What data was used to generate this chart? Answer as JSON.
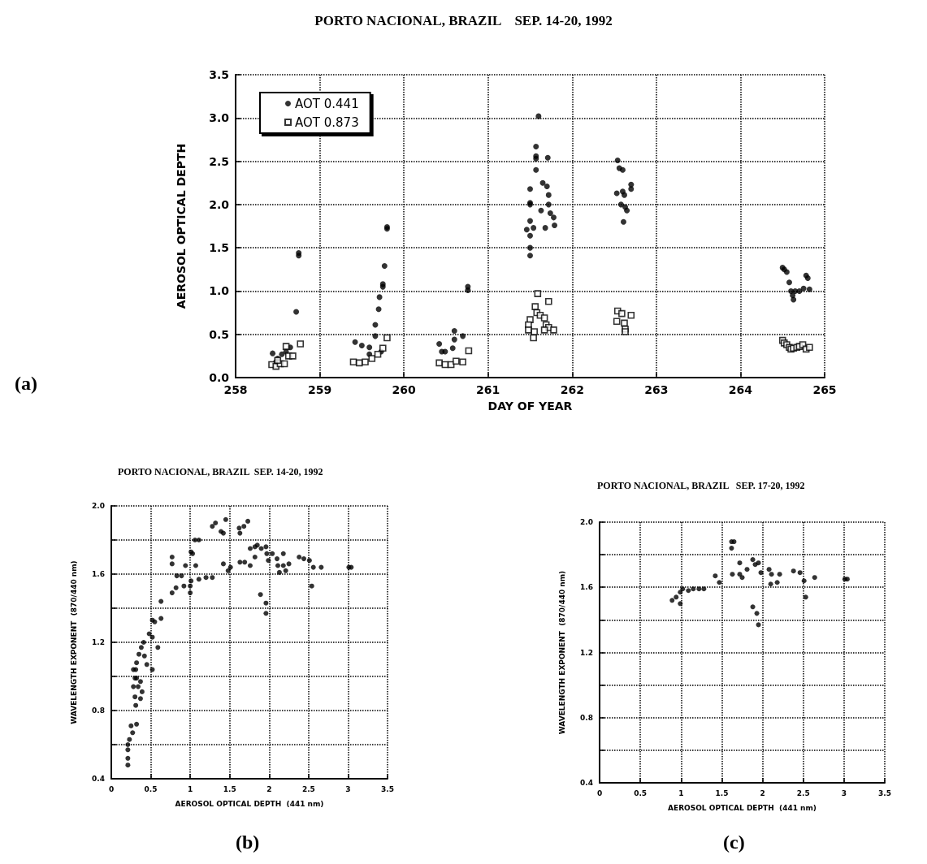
{
  "chart_data": [
    {
      "type": "scatter",
      "title": "PORTO NACIONAL, BRAZIL    SEP. 14-20, 1992",
      "xlabel": "DAY OF YEAR",
      "ylabel": "AEROSOL OPTICAL DEPTH",
      "annotations": [
        "(a)"
      ],
      "xlim": [
        258,
        265
      ],
      "xticks": [
        258,
        259,
        260,
        261,
        262,
        263,
        264,
        265
      ],
      "ylim": [
        0,
        3.5
      ],
      "yticks": [
        {
          "value": 0,
          "label": "0.0"
        },
        0.5,
        {
          "value": 1,
          "label": "1.0"
        },
        1.5,
        {
          "value": 2,
          "label": "2.0"
        },
        2.5,
        {
          "value": 3,
          "label": "3.0"
        },
        3.5
      ],
      "grid": true,
      "legend": "top left",
      "series": [
        {
          "name": "AOT 0.441",
          "color": "#000000",
          "marker": "circle",
          "x": [
            258.44,
            258.5,
            258.55,
            258.6,
            258.65,
            258.48,
            258.72,
            258.75,
            258.75,
            259.42,
            259.5,
            259.59,
            259.66,
            259.66,
            259.7,
            259.71,
            259.75,
            259.75,
            259.77,
            259.8,
            259.8,
            259.59,
            259.73,
            260.42,
            260.49,
            260.58,
            260.6,
            260.6,
            260.7,
            260.76,
            260.76,
            260.45,
            261.6,
            261.57,
            261.57,
            261.57,
            261.71,
            261.57,
            261.5,
            261.5,
            261.5,
            261.5,
            261.46,
            261.5,
            261.54,
            261.5,
            261.5,
            261.65,
            261.7,
            261.72,
            261.63,
            261.72,
            261.74,
            261.68,
            261.78,
            261.79,
            262.54,
            262.56,
            262.6,
            262.53,
            262.6,
            262.62,
            262.7,
            262.7,
            262.63,
            262.65,
            262.61,
            262.58,
            264.5,
            264.52,
            264.55,
            264.58,
            264.6,
            264.62,
            264.63,
            264.65,
            264.7,
            264.75,
            264.78,
            264.8,
            264.82
          ],
          "values": [
            0.28,
            0.22,
            0.27,
            0.3,
            0.35,
            0.18,
            0.76,
            1.41,
            1.44,
            0.41,
            0.37,
            0.35,
            0.61,
            0.48,
            0.79,
            0.93,
            1.05,
            1.08,
            1.29,
            1.72,
            1.74,
            0.27,
            0.3,
            0.39,
            0.3,
            0.34,
            0.44,
            0.54,
            0.48,
            1.01,
            1.05,
            0.3,
            3.02,
            2.67,
            2.56,
            2.53,
            2.54,
            2.4,
            2.18,
            2.02,
            2.0,
            1.81,
            1.71,
            1.64,
            1.73,
            1.5,
            1.41,
            2.25,
            2.21,
            2.11,
            1.93,
            2.0,
            1.9,
            1.73,
            1.85,
            1.76,
            2.51,
            2.42,
            2.4,
            2.13,
            2.15,
            2.11,
            2.23,
            2.18,
            1.97,
            1.93,
            1.8,
            2.0,
            1.27,
            1.25,
            1.22,
            1.1,
            1.0,
            0.95,
            0.9,
            1.0,
            1.0,
            1.03,
            1.18,
            1.15,
            1.02
          ]
        },
        {
          "name": "AOT 0.873",
          "color": "#000000",
          "marker": "square",
          "x": [
            258.43,
            258.48,
            258.53,
            258.63,
            258.58,
            258.68,
            258.77,
            258.6,
            258.5,
            259.4,
            259.47,
            259.54,
            259.62,
            259.69,
            259.75,
            259.8,
            260.42,
            260.49,
            260.56,
            260.62,
            260.7,
            260.77,
            261.59,
            261.72,
            261.56,
            261.58,
            261.62,
            261.5,
            261.48,
            261.48,
            261.54,
            261.55,
            261.67,
            261.69,
            261.72,
            261.78,
            261.67,
            262.54,
            262.59,
            262.7,
            262.53,
            262.62,
            262.63,
            262.63,
            264.5,
            264.52,
            264.55,
            264.58,
            264.6,
            264.63,
            264.67,
            264.7,
            264.74,
            264.78,
            264.82
          ],
          "values": [
            0.15,
            0.13,
            0.16,
            0.25,
            0.16,
            0.25,
            0.39,
            0.36,
            0.2,
            0.18,
            0.17,
            0.18,
            0.22,
            0.27,
            0.34,
            0.46,
            0.17,
            0.15,
            0.15,
            0.19,
            0.18,
            0.31,
            0.97,
            0.88,
            0.82,
            0.75,
            0.72,
            0.67,
            0.61,
            0.55,
            0.46,
            0.53,
            0.69,
            0.61,
            0.58,
            0.55,
            0.55,
            0.77,
            0.74,
            0.72,
            0.65,
            0.63,
            0.56,
            0.53,
            0.43,
            0.4,
            0.38,
            0.35,
            0.33,
            0.34,
            0.35,
            0.36,
            0.38,
            0.33,
            0.35
          ]
        }
      ]
    },
    {
      "type": "scatter",
      "title": "PORTO NACIONAL, BRAZIL  SEP. 14-20, 1992",
      "xlabel": "AEROSOL OPTICAL DEPTH  (441 nm)",
      "ylabel": "WAVELENGTH EXPONENT  (870/440 nm)",
      "annotations": [
        "(b)"
      ],
      "xlim": [
        0,
        3.5
      ],
      "xticks": [
        0,
        0.5,
        1,
        1.5,
        2,
        2.5,
        3,
        3.5
      ],
      "ylim": [
        0.4,
        2.0
      ],
      "yticks": [
        0.4,
        {
          "value": 0.6,
          "label": null
        },
        0.8,
        {
          "value": 1,
          "label": null
        },
        1.2,
        {
          "value": 1.4,
          "label": null
        },
        1.6,
        {
          "value": 1.8,
          "label": null
        },
        {
          "value": 2,
          "label": "2.0"
        }
      ],
      "grid": true,
      "marker": "circle",
      "color": "#000000",
      "x": [
        0.21,
        0.21,
        0.21,
        0.21,
        0.23,
        0.25,
        0.32,
        0.27,
        0.31,
        0.3,
        0.28,
        0.3,
        0.31,
        0.32,
        0.35,
        0.38,
        0.41,
        0.39,
        0.37,
        0.42,
        0.45,
        0.52,
        0.59,
        0.52,
        0.48,
        0.52,
        0.55,
        0.63,
        0.63,
        0.32,
        0.34,
        0.37,
        0.28,
        0.77,
        0.77,
        0.77,
        0.82,
        0.83,
        0.89,
        0.92,
        0.94,
        1.0,
        1.0,
        1.01,
        1.01,
        1.03,
        1.07,
        1.06,
        1.11,
        1.11,
        1.2,
        1.28,
        1.28,
        1.32,
        1.39,
        1.42,
        1.45,
        1.42,
        1.48,
        1.51,
        1.62,
        1.63,
        1.68,
        1.73,
        1.63,
        1.69,
        1.76,
        1.76,
        1.82,
        1.85,
        1.82,
        1.9,
        1.96,
        1.97,
        1.99,
        1.89,
        1.96,
        1.96,
        2.04,
        2.1,
        2.11,
        2.13,
        2.18,
        2.18,
        2.21,
        2.25,
        2.38,
        2.44,
        2.51,
        2.56,
        2.54,
        2.66,
        3.01,
        3.04
      ],
      "values": [
        0.48,
        0.52,
        0.57,
        0.6,
        0.63,
        0.71,
        0.72,
        0.67,
        0.83,
        0.88,
        0.94,
        0.99,
        1.04,
        1.08,
        1.13,
        1.17,
        1.2,
        0.91,
        0.87,
        1.12,
        1.07,
        1.04,
        1.17,
        1.23,
        1.25,
        1.33,
        1.32,
        1.34,
        1.44,
        0.99,
        0.94,
        0.97,
        1.04,
        1.7,
        1.66,
        1.49,
        1.52,
        1.59,
        1.59,
        1.53,
        1.65,
        1.53,
        1.49,
        1.56,
        1.73,
        1.72,
        1.65,
        1.8,
        1.8,
        1.57,
        1.58,
        1.58,
        1.88,
        1.9,
        1.85,
        1.84,
        1.92,
        1.66,
        1.62,
        1.64,
        1.87,
        1.84,
        1.88,
        1.91,
        1.67,
        1.67,
        1.65,
        1.75,
        1.76,
        1.77,
        1.7,
        1.75,
        1.76,
        1.72,
        1.68,
        1.48,
        1.43,
        1.37,
        1.72,
        1.69,
        1.65,
        1.61,
        1.65,
        1.72,
        1.62,
        1.66,
        1.7,
        1.69,
        1.68,
        1.64,
        1.53,
        1.64,
        1.64,
        1.64
      ]
    },
    {
      "type": "scatter",
      "title": "PORTO NACIONAL, BRAZIL   SEP. 17-20, 1992",
      "xlabel": "AEROSOL OPTICAL DEPTH  (441 nm)",
      "ylabel": "WAVELENGTH EXPONENT  (870/440 nm)",
      "annotations": [
        "(c)"
      ],
      "xlim": [
        0,
        3.5
      ],
      "xticks": [
        0,
        0.5,
        1,
        1.5,
        2,
        2.5,
        3,
        3.5
      ],
      "ylim": [
        0.4,
        2.0
      ],
      "yticks": [
        0.4,
        {
          "value": 0.6,
          "label": null
        },
        0.8,
        {
          "value": 1,
          "label": null
        },
        1.2,
        {
          "value": 1.4,
          "label": null
        },
        1.6,
        {
          "value": 1.8,
          "label": null
        },
        {
          "value": 2,
          "label": "2.0"
        }
      ],
      "grid": true,
      "marker": "circle",
      "color": "#000000",
      "x": [
        0.89,
        0.94,
        0.99,
        0.99,
        1.02,
        1.09,
        1.15,
        1.22,
        1.28,
        1.42,
        1.47,
        1.62,
        1.62,
        1.65,
        1.63,
        1.72,
        1.75,
        1.72,
        1.81,
        1.88,
        1.95,
        1.91,
        1.98,
        1.88,
        1.93,
        1.95,
        2.08,
        2.11,
        2.1,
        2.18,
        2.21,
        2.38,
        2.46,
        2.51,
        2.53,
        2.64,
        3.01,
        3.04
      ],
      "values": [
        1.52,
        1.54,
        1.57,
        1.5,
        1.59,
        1.58,
        1.59,
        1.59,
        1.59,
        1.67,
        1.63,
        1.88,
        1.84,
        1.88,
        1.68,
        1.68,
        1.66,
        1.75,
        1.71,
        1.77,
        1.75,
        1.74,
        1.69,
        1.48,
        1.44,
        1.37,
        1.71,
        1.68,
        1.62,
        1.63,
        1.68,
        1.7,
        1.69,
        1.64,
        1.54,
        1.66,
        1.65,
        1.65
      ]
    }
  ]
}
